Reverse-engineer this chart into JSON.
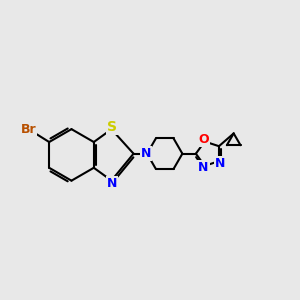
{
  "bg_color": "#e8e8e8",
  "bond_color": "#000000",
  "atom_colors": {
    "Br": "#b85000",
    "S": "#cccc00",
    "N": "#0000ff",
    "O": "#ff0000",
    "C": "#000000"
  },
  "figsize": [
    3.0,
    3.0
  ],
  "dpi": 100
}
